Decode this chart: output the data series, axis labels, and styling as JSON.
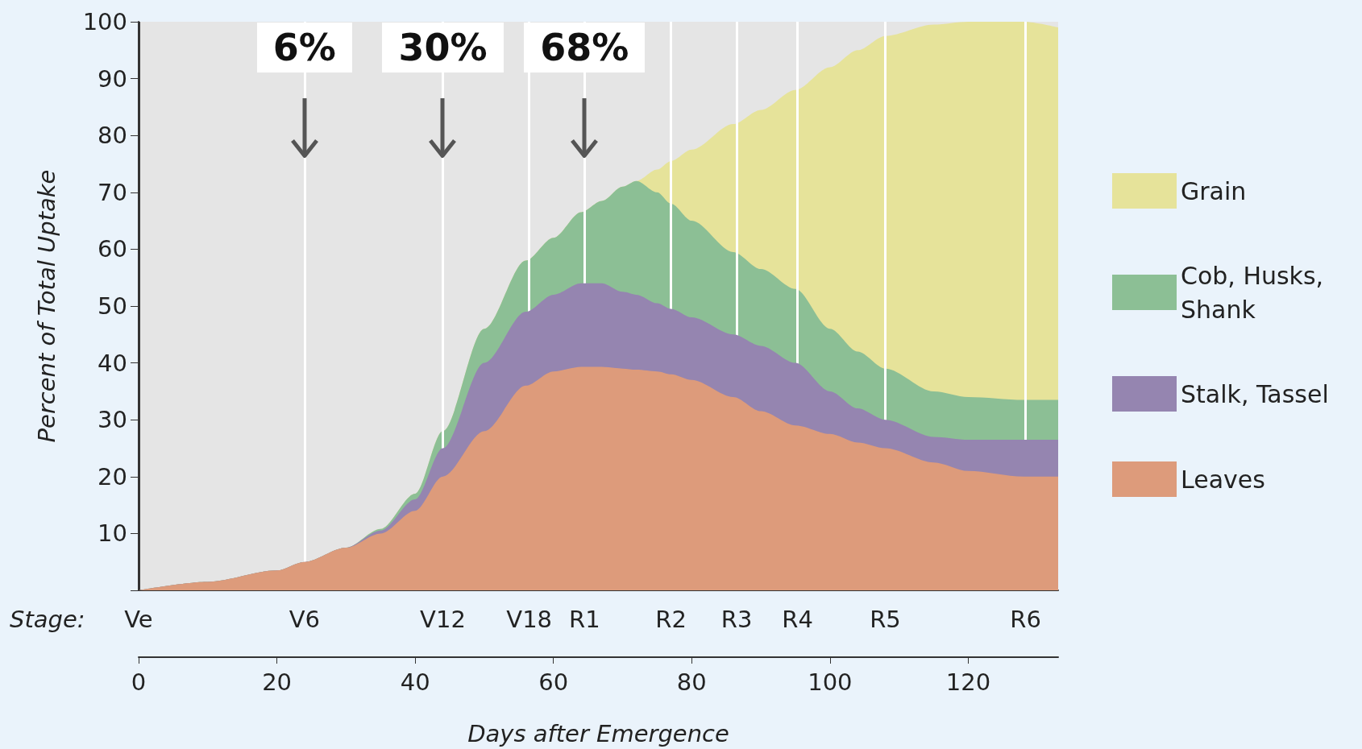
{
  "chart_data": {
    "type": "area",
    "stacked": true,
    "xlabel": "Days after Emergence",
    "ylabel": "Percent of Total Uptake",
    "x": [
      0,
      10,
      20,
      24,
      30,
      35,
      40,
      44,
      50,
      56,
      60,
      64,
      67,
      70,
      72,
      75,
      77,
      80,
      86,
      90,
      95,
      100,
      104,
      108,
      115,
      120,
      128,
      133
    ],
    "series": [
      {
        "name": "Leaves",
        "color": "#dd9b7b",
        "values": [
          0,
          1.5,
          3.5,
          5,
          7.5,
          10,
          14,
          20,
          28,
          36,
          38.5,
          39.3,
          39.3,
          39,
          38.8,
          38.5,
          38,
          37,
          34,
          31.5,
          29,
          27.5,
          26,
          25,
          22.5,
          21,
          20,
          20
        ]
      },
      {
        "name": "Stalk, Tassel",
        "color": "#9585b0",
        "values": [
          0,
          0,
          0,
          0,
          0,
          0.5,
          2,
          5,
          12,
          13,
          13.5,
          14.7,
          14.7,
          13.5,
          13.2,
          12,
          11.5,
          11,
          11,
          11.5,
          11,
          7.5,
          6,
          5,
          4.5,
          5.5,
          6.5,
          6.5
        ]
      },
      {
        "name": "Cob, Husks, Shank",
        "color": "#8cbf95",
        "values": [
          0,
          0,
          0,
          0,
          0,
          0.3,
          1,
          3,
          6,
          9,
          10,
          12.5,
          14.5,
          18.5,
          20,
          19.5,
          18.5,
          17,
          14.5,
          13.5,
          13,
          11,
          10,
          9,
          8,
          7.5,
          7,
          7
        ]
      },
      {
        "name": "Grain",
        "color": "#e6e39a",
        "values": [
          0,
          0,
          0,
          0,
          0,
          0,
          0,
          0,
          0,
          0,
          0,
          0,
          0,
          0,
          0,
          4,
          7.5,
          12.5,
          22.5,
          28,
          35,
          46,
          53,
          58.5,
          64.5,
          66,
          66.5,
          65.5
        ]
      }
    ],
    "xlim": [
      0,
      133
    ],
    "xticks": [
      0,
      20,
      40,
      60,
      80,
      100,
      120
    ],
    "ylim": [
      0,
      100
    ],
    "yticks": [
      {
        "value": 0,
        "label": null
      },
      10,
      20,
      30,
      40,
      50,
      60,
      70,
      80,
      90,
      100
    ],
    "ref_lines": [
      {
        "axis": "x",
        "value": 0,
        "label": "Ve",
        "color": "#333333"
      },
      {
        "axis": "x",
        "value": 24,
        "label": "V6",
        "color": "#ffffff"
      },
      {
        "axis": "x",
        "value": 44,
        "label": "V12",
        "color": "#ffffff"
      },
      {
        "axis": "x",
        "value": 56.5,
        "label": "V18",
        "color": "#ffffff"
      },
      {
        "axis": "x",
        "value": 64.5,
        "label": "R1",
        "color": "#ffffff"
      },
      {
        "axis": "x",
        "value": 77,
        "label": "R2",
        "color": "#ffffff"
      },
      {
        "axis": "x",
        "value": 86.5,
        "label": "R3",
        "color": "#ffffff"
      },
      {
        "axis": "x",
        "value": 95.3,
        "label": "R4",
        "color": "#ffffff"
      },
      {
        "axis": "x",
        "value": 108,
        "label": "R5",
        "color": "#ffffff"
      },
      {
        "axis": "x",
        "value": 128.3,
        "label": "R6",
        "color": "#ffffff"
      }
    ],
    "annotations": [
      {
        "text": "6%",
        "x": 24,
        "y": 76
      },
      {
        "text": "30%",
        "x": 44,
        "y": 76
      },
      {
        "text": "68%",
        "x": 64.5,
        "y": 76
      },
      "Stage:"
    ],
    "grid": false,
    "legend": "right"
  }
}
